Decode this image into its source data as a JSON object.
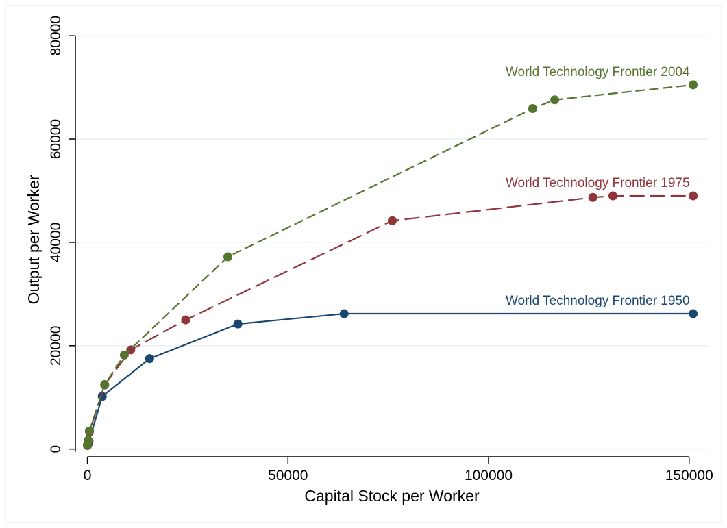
{
  "chart_data": {
    "type": "line",
    "title": "",
    "xlabel": "Capital Stock per Worker",
    "ylabel": "Output per Worker",
    "xlim": [
      -3000,
      155000
    ],
    "ylim": [
      -1500,
      84000
    ],
    "x_ticks": [
      0,
      50000,
      100000,
      150000
    ],
    "y_ticks": [
      0,
      20000,
      40000,
      60000,
      80000
    ],
    "x_tick_labels": [
      "0",
      "50000",
      "100000",
      "150000"
    ],
    "y_tick_labels": [
      "0",
      "20000",
      "40000",
      "60000",
      "80000"
    ],
    "grid": "horizontal",
    "legend": "none (inline labels near right end of each series)",
    "series": [
      {
        "name": "World Technology Frontier 1950",
        "color": "#1a476f",
        "line_style": "solid",
        "points": [
          [
            0,
            700
          ],
          [
            200,
            1000
          ],
          [
            400,
            1500
          ],
          [
            3700,
            10200
          ],
          [
            15500,
            17500
          ],
          [
            37500,
            24200
          ],
          [
            64000,
            26200
          ],
          [
            151000,
            26200
          ]
        ]
      },
      {
        "name": "World Technology Frontier 1975",
        "color": "#90353b",
        "line_style": "long-dash",
        "points": [
          [
            0,
            700
          ],
          [
            200,
            1200
          ],
          [
            500,
            3300
          ],
          [
            4300,
            12400
          ],
          [
            10800,
            19200
          ],
          [
            24500,
            25000
          ],
          [
            76000,
            44200
          ],
          [
            126000,
            48700
          ],
          [
            131000,
            49000
          ],
          [
            151000,
            49000
          ]
        ]
      },
      {
        "name": "World Technology Frontier 2004",
        "color": "#55752f",
        "line_style": "dash",
        "points": [
          [
            0,
            800
          ],
          [
            200,
            1700
          ],
          [
            500,
            3500
          ],
          [
            4300,
            12500
          ],
          [
            9200,
            18200
          ],
          [
            35000,
            37200
          ],
          [
            111000,
            65900
          ],
          [
            116500,
            67600
          ],
          [
            151000,
            70500
          ]
        ]
      }
    ]
  }
}
